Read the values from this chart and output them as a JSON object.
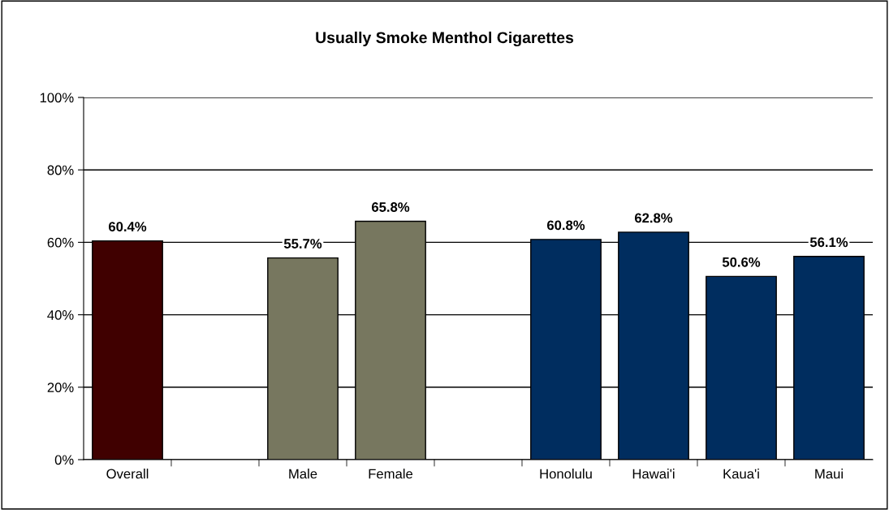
{
  "chart_data": {
    "type": "bar",
    "title": "Usually Smoke Menthol Cigarettes",
    "categories": [
      "Overall",
      null,
      "Male",
      "Female",
      null,
      "Honolulu",
      "Hawai'i",
      "Kaua'i",
      "Maui"
    ],
    "values": [
      60.4,
      null,
      55.7,
      65.8,
      null,
      60.8,
      62.8,
      50.6,
      56.1
    ],
    "colors": [
      "#400000",
      null,
      "#77775f",
      "#77775f",
      null,
      "#002d5f",
      "#002d5f",
      "#002d5f",
      "#002d5f"
    ],
    "value_labels": [
      "60.4%",
      null,
      "55.7%",
      "65.8%",
      null,
      "60.8%",
      "62.8%",
      "50.6%",
      "56.1%"
    ],
    "ylim": [
      0,
      100
    ],
    "yticks": [
      {
        "value": 0,
        "label": "0%"
      },
      {
        "value": 20,
        "label": "20%"
      },
      {
        "value": 40,
        "label": "40%"
      },
      {
        "value": 60,
        "label": "60%"
      },
      {
        "value": 80,
        "label": "80%"
      },
      {
        "value": 100,
        "label": "100%"
      }
    ],
    "grid": "y"
  }
}
